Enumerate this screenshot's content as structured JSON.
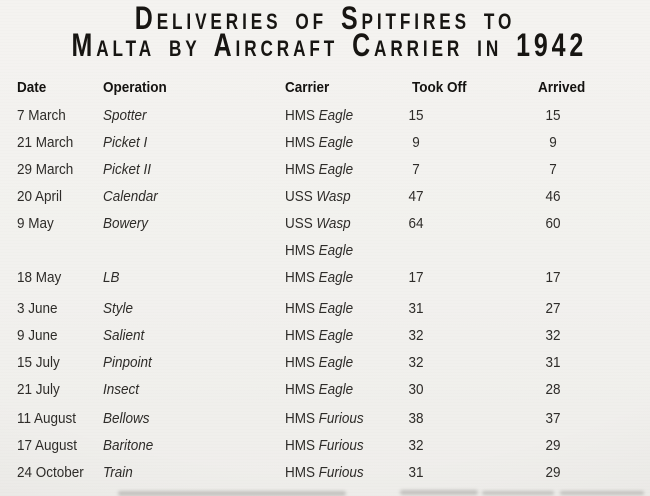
{
  "title": {
    "line1": "Deliveries of Spitfires to",
    "line2": "Malta by Aircraft Carrier in 1942"
  },
  "table": {
    "columns": [
      "Date",
      "Operation",
      "Carrier",
      "Took Off",
      "Arrived"
    ],
    "rows": [
      {
        "date": "7 March",
        "operation": "Spotter",
        "carrier_prefix": "HMS",
        "carrier_name": "Eagle",
        "took_off": "15",
        "arrived": "15"
      },
      {
        "date": "21 March",
        "operation": "Picket I",
        "carrier_prefix": "HMS",
        "carrier_name": "Eagle",
        "took_off": "9",
        "arrived": "9"
      },
      {
        "date": "29 March",
        "operation": "Picket II",
        "carrier_prefix": "HMS",
        "carrier_name": "Eagle",
        "took_off": "7",
        "arrived": "7"
      },
      {
        "date": "20 April",
        "operation": "Calendar",
        "carrier_prefix": "USS",
        "carrier_name": "Wasp",
        "took_off": "47",
        "arrived": "46"
      },
      {
        "date": "9 May",
        "operation": "Bowery",
        "carrier_prefix": "USS",
        "carrier_name": "Wasp",
        "took_off": "64",
        "arrived": "60"
      },
      {
        "date": "",
        "operation": "",
        "carrier_prefix": "HMS",
        "carrier_name": "Eagle",
        "took_off": "",
        "arrived": ""
      },
      {
        "date": "18 May",
        "operation": "LB",
        "carrier_prefix": "HMS",
        "carrier_name": "Eagle",
        "took_off": "17",
        "arrived": "17"
      },
      {
        "date": "3 June",
        "operation": "Style",
        "carrier_prefix": "HMS",
        "carrier_name": "Eagle",
        "took_off": "31",
        "arrived": "27"
      },
      {
        "date": "9 June",
        "operation": "Salient",
        "carrier_prefix": "HMS",
        "carrier_name": "Eagle",
        "took_off": "32",
        "arrived": "32"
      },
      {
        "date": "15 July",
        "operation": "Pinpoint",
        "carrier_prefix": "HMS",
        "carrier_name": "Eagle",
        "took_off": "32",
        "arrived": "31"
      },
      {
        "date": "21 July",
        "operation": "Insect",
        "carrier_prefix": "HMS",
        "carrier_name": "Eagle",
        "took_off": "30",
        "arrived": "28"
      },
      {
        "date": "11 August",
        "operation": "Bellows",
        "carrier_prefix": "HMS",
        "carrier_name": "Furious",
        "took_off": "38",
        "arrived": "37"
      },
      {
        "date": "17 August",
        "operation": "Baritone",
        "carrier_prefix": "HMS",
        "carrier_name": "Furious",
        "took_off": "32",
        "arrived": "29"
      },
      {
        "date": "24 October",
        "operation": "Train",
        "carrier_prefix": "HMS",
        "carrier_name": "Furious",
        "took_off": "31",
        "arrived": "29"
      }
    ]
  },
  "colors": {
    "background": "#f2f1ee",
    "title_ink": "#171512",
    "body_ink": "#2e2c29"
  }
}
